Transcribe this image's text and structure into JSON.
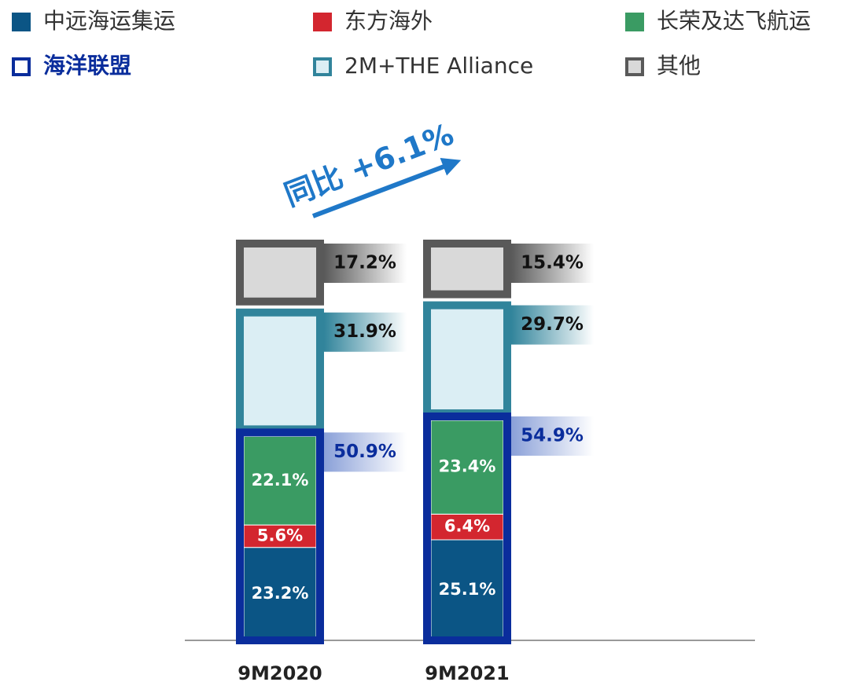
{
  "chart_data": {
    "type": "bar",
    "stacked": true,
    "annotation": "同比 +6.1%",
    "categories": [
      "9M2020",
      "9M2021"
    ],
    "series": [
      {
        "name": "中远海运集运",
        "color": "#0b5585",
        "values": [
          23.2,
          25.1
        ],
        "value_labels": [
          "23.2%",
          "25.1%"
        ]
      },
      {
        "name": "东方海外",
        "color": "#d3262f",
        "values": [
          5.6,
          6.4
        ],
        "value_labels": [
          "5.6%",
          "6.4%"
        ]
      },
      {
        "name": "长荣及达飞航运",
        "color": "#3a9b63",
        "values": [
          22.1,
          23.4
        ],
        "value_labels": [
          "22.1%",
          "23.4%"
        ]
      },
      {
        "name": "2M+THE Alliance",
        "color": "#dbeef4",
        "border": "#31849b",
        "values": [
          31.9,
          29.7
        ],
        "value_labels": [
          "31.9%",
          "29.7%"
        ]
      },
      {
        "name": "其他",
        "color": "#d9d9d9",
        "border": "#595959",
        "values": [
          17.2,
          15.4
        ],
        "value_labels": [
          "17.2%",
          "15.4%"
        ]
      }
    ],
    "groups": [
      {
        "name": "海洋联盟",
        "color": "#0a2d9c",
        "members": [
          0,
          1,
          2
        ],
        "values": [
          50.9,
          54.9
        ],
        "value_labels": [
          "50.9%",
          "54.9%"
        ]
      }
    ]
  }
}
